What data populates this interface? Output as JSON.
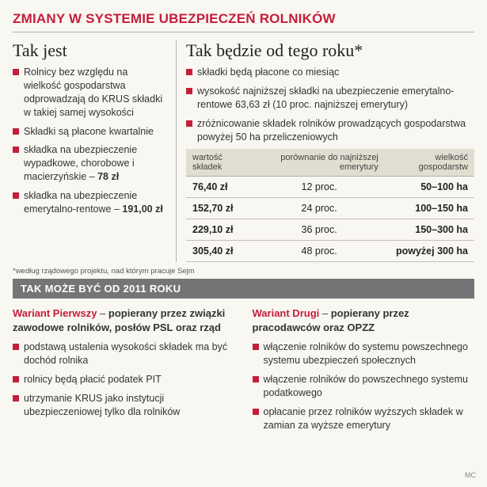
{
  "main_title": "ZMIANY W SYSTEMIE UBEZPIECZEŃ ROLNIKÓW",
  "left": {
    "heading": "Tak jest",
    "items": [
      {
        "text": "Rolnicy bez względu na wielkość gospodarstwa odprowadzają do KRUS składki w takiej samej wysokości"
      },
      {
        "text": "Składki są płacone kwartalnie"
      },
      {
        "pre": "składka na ubezpieczenie wypadkowe, chorobowe i macierzyńskie – ",
        "bold": "78 zł"
      },
      {
        "pre": "składka na ubezpieczenie emerytalno-rentowe – ",
        "bold": "191,00 zł"
      }
    ]
  },
  "right": {
    "heading": "Tak będzie od tego roku*",
    "items": [
      "składki będą płacone co miesiąc",
      "wysokość najniższej składki na ubezpieczenie emerytalno-rentowe 63,63 zł (10 proc. najniższej emerytury)",
      "zróżnicowanie składek rolników prowadzących gospodarstwa powyżej 50 ha przeliczeniowych"
    ],
    "table": {
      "columns": [
        "wartość składek",
        "porównanie do najniższej emerytury",
        "wielkość gospodarstw"
      ],
      "rows": [
        [
          "76,40 zł",
          "12 proc.",
          "50–100 ha"
        ],
        [
          "152,70 zł",
          "24 proc.",
          "100–150 ha"
        ],
        [
          "229,10 zł",
          "36 proc.",
          "150–300 ha"
        ],
        [
          "305,40 zł",
          "48 proc.",
          "powyżej 300 ha"
        ]
      ]
    }
  },
  "footnote": "*według rządowego projektu, nad którym pracuje Sejm",
  "bar_2011": "TAK MOŻE BYĆ OD 2011 ROKU",
  "variant1": {
    "name": "Wariant Pierwszy",
    "sep": " – ",
    "desc": "popierany przez związki zawodowe rolników, posłów PSL oraz rząd",
    "items": [
      "podstawą ustalenia wysokości składek ma być dochód rolnika",
      "rolnicy będą płacić podatek PIT",
      "utrzymanie KRUS jako instytucji ubezpieczeniowej tylko dla rolników"
    ]
  },
  "variant2": {
    "name": "Wariant Drugi",
    "sep": " – ",
    "desc": "popierany przez pracodawców oraz OPZZ",
    "items": [
      "włączenie rolników do systemu powszechnego systemu ubezpieczeń społecznych",
      "włączenie rolników do powszechnego systemu podatkowego",
      "opłacanie przez rolników wyższych składek w zamian za wyższe emerytury"
    ]
  },
  "credit": "MC"
}
